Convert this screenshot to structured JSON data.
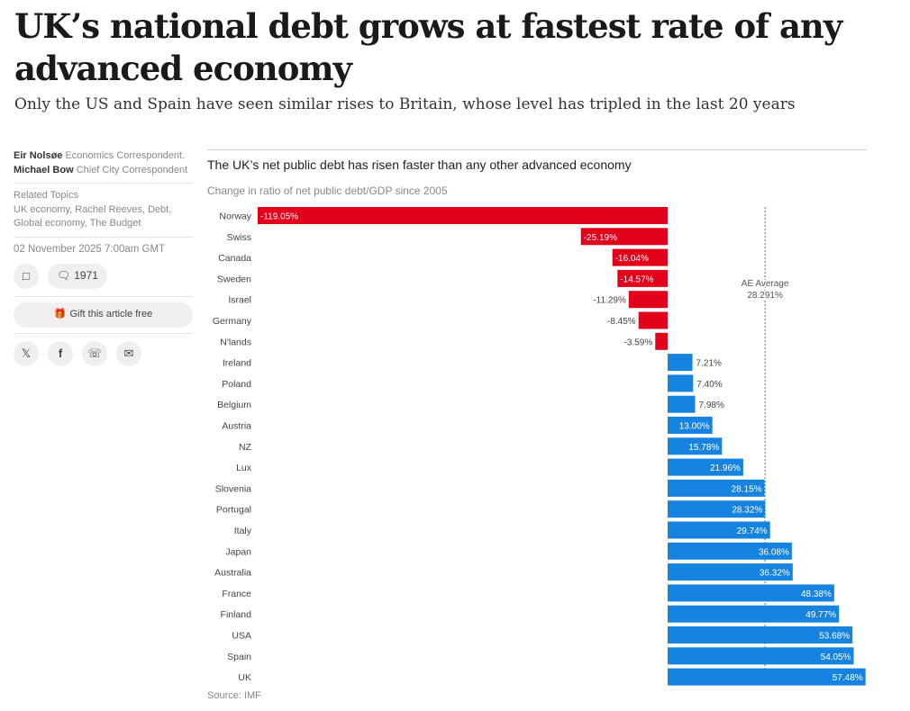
{
  "headline": "UK’s national debt grows at fastest rate of any advanced economy",
  "standfirst": "Only the US and Spain have seen similar rises to Britain, whose level has tripled in the last 20 years",
  "byline": {
    "author1": "Eir Nolsøe",
    "role1": "Economics Correspondent.",
    "author2": "Michael Bow",
    "role2": "Chief City Correspondent"
  },
  "related": {
    "label": "Related Topics",
    "topics": "UK economy, Rachel Reeves, Debt, Global economy, The Budget"
  },
  "date": "02 November 2025 7:00am GMT",
  "comments": "1971",
  "gift_label": "Gift this article free",
  "share_icons": [
    "x-icon",
    "facebook-icon",
    "whatsapp-icon",
    "email-icon"
  ],
  "chart_data": {
    "type": "bar",
    "orientation": "horizontal",
    "title": "The UK’s net public debt has risen faster than any other advanced economy",
    "subtitle": "Change in ratio of net public debt/GDP since 2005",
    "source": "Source: IMF",
    "categories": [
      "Norway",
      "Swiss",
      "Canada",
      "Sweden",
      "Israel",
      "Germany",
      "N'lands",
      "Ireland",
      "Poland",
      "Belgium",
      "Austria",
      "NZ",
      "Lux",
      "Slovenia",
      "Portugal",
      "Italy",
      "Japan",
      "Australia",
      "France",
      "Finland",
      "USA",
      "Spain",
      "UK"
    ],
    "values": [
      -119.05,
      -25.19,
      -16.04,
      -14.57,
      -11.29,
      -8.45,
      -3.59,
      7.21,
      7.4,
      7.98,
      13.0,
      15.78,
      21.96,
      28.15,
      28.32,
      29.74,
      36.08,
      36.32,
      48.38,
      49.77,
      53.68,
      54.05,
      57.48
    ],
    "data_labels": [
      "-119.05%",
      "-25.19%",
      "-16.04%",
      "-14.57%",
      "-11.29%",
      "-8.45%",
      "-3.59%",
      "7.21%",
      "7.40%",
      "7.98%",
      "13.00%",
      "15.78%",
      "21.96%",
      "28.15%",
      "28.32%",
      "29.74%",
      "36.08%",
      "36.32%",
      "48.38%",
      "49.77%",
      "53.68%",
      "54.05%",
      "57.48%"
    ],
    "reference_line": {
      "label": "AE Average",
      "value_label": "28.291%",
      "value": 28.291
    },
    "colors": {
      "negative": "#e2001a",
      "positive": "#1683e0"
    },
    "grid": false
  }
}
